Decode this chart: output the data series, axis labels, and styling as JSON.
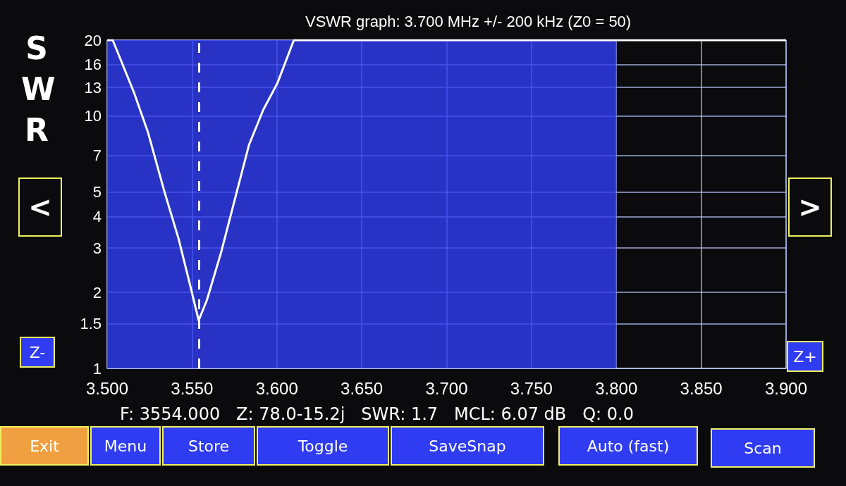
{
  "chart_data": {
    "type": "line",
    "title": "VSWR graph: 3.700 MHz +/- 200 kHz (Z0 = 50)",
    "ylabel": "SWR",
    "x": [
      3.5,
      3.5033,
      3.5158,
      3.5241,
      3.5338,
      3.5421,
      3.549,
      3.5539,
      3.5587,
      3.567,
      3.5753,
      3.5836,
      3.592,
      3.6003,
      3.61,
      3.9
    ],
    "series": [
      {
        "color": "#ffffff",
        "values": [
          20,
          20,
          12.4,
          8.6,
          5.0,
          3.26,
          2.12,
          1.55,
          1.86,
          2.86,
          4.7,
          7.7,
          10.6,
          13.5,
          20,
          20
        ]
      }
    ],
    "xlim": [
      3.5,
      3.9
    ],
    "xticks": [
      {
        "value": 3.5,
        "label": "3.500"
      },
      {
        "value": 3.55,
        "label": "3.550"
      },
      {
        "value": 3.6,
        "label": "3.600"
      },
      {
        "value": 3.65,
        "label": "3.650"
      },
      {
        "value": 3.7,
        "label": "3.700"
      },
      {
        "value": 3.75,
        "label": "3.750"
      },
      {
        "value": 3.8,
        "label": "3.800"
      },
      {
        "value": 3.85,
        "label": "3.850"
      },
      {
        "value": 3.9,
        "label": "3.900"
      }
    ],
    "ylim": [
      1,
      20
    ],
    "yticks": [
      1,
      1.5,
      2,
      3,
      4,
      5,
      7,
      10,
      13,
      16,
      20
    ],
    "log": true,
    "grid": true,
    "marker": "none",
    "line_style": "solid",
    "ref_lines": [
      {
        "axis": "x",
        "value": 3.554,
        "label": null,
        "color": "#ffffff",
        "line_style": "dashed"
      }
    ],
    "bands": [
      {
        "axis": "x",
        "from": 3.5,
        "to": 3.8,
        "label": null,
        "color": "#2f3cf2"
      }
    ],
    "annotations": [
      "F: 3554.000   Z: 78.0-15.2j   SWR: 1.7   MCL: 6.07 dB   Q: 0.0",
      "<",
      ">",
      "Z-",
      "Z+",
      "Exit",
      "Menu",
      "Store",
      "Toggle",
      "SaveSnap",
      "Auto (fast)",
      "Scan"
    ]
  }
}
